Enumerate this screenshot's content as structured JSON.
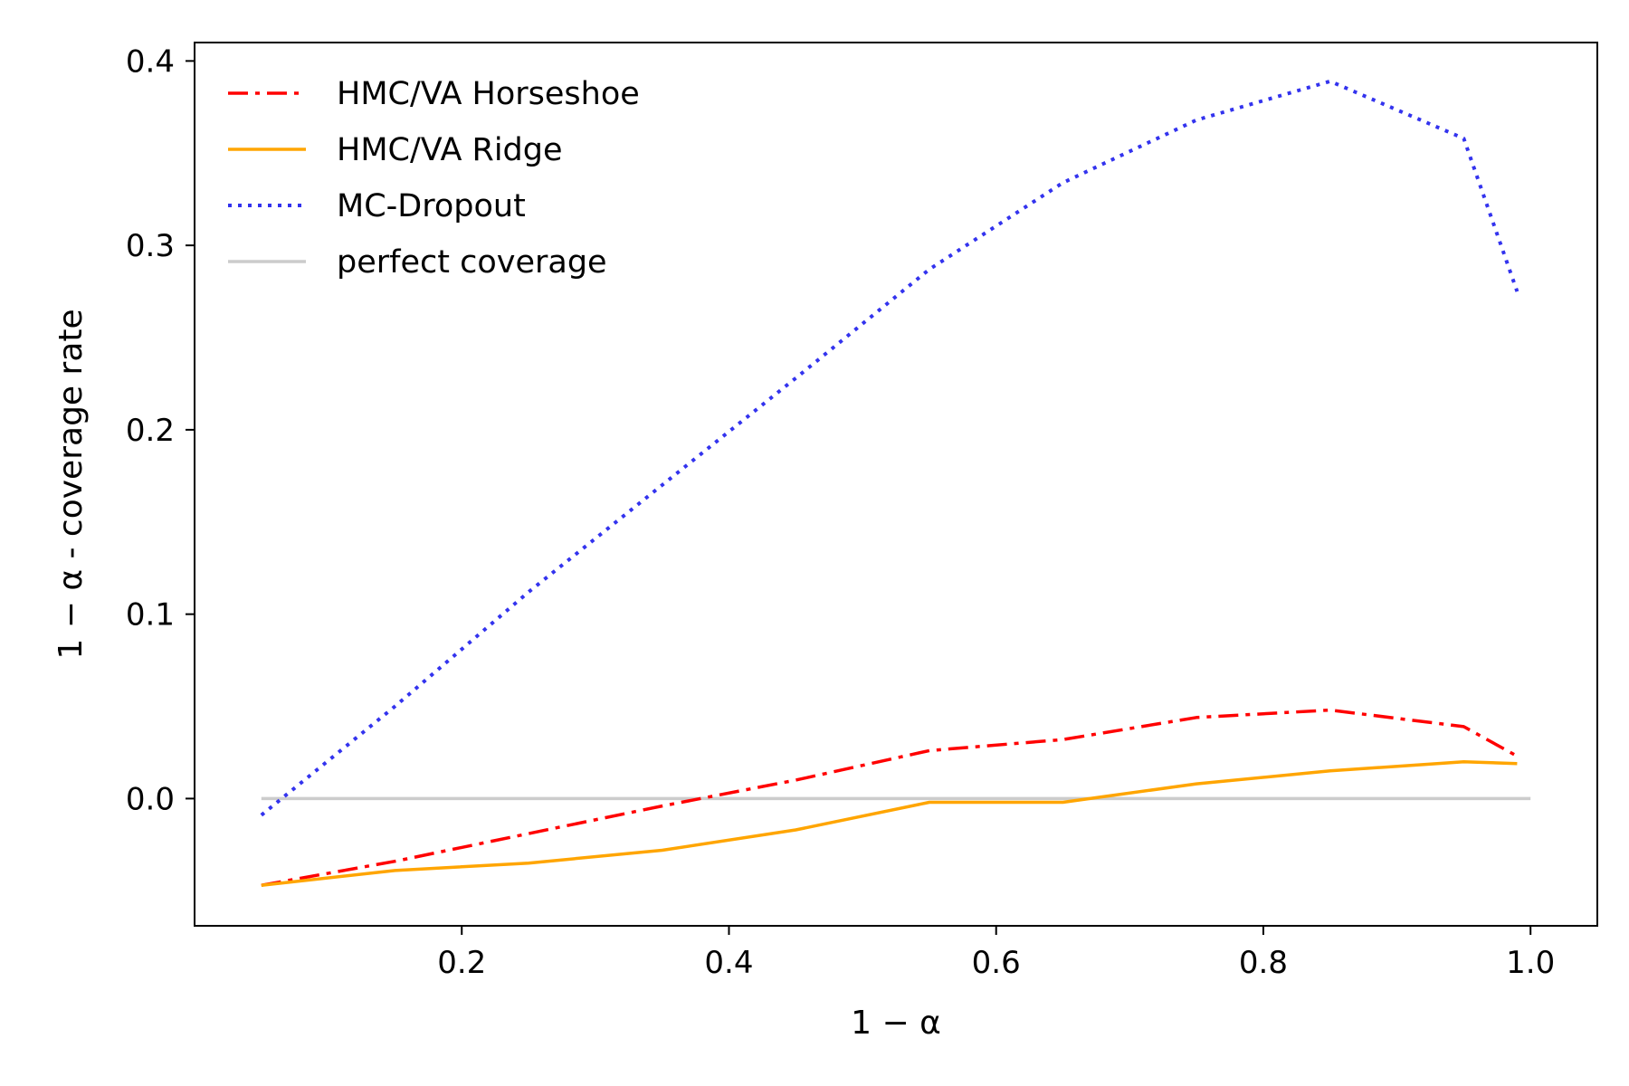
{
  "chart_data": {
    "type": "line",
    "xlabel": "1 − α",
    "ylabel": "1 − α - coverage rate",
    "xlim": [
      0.0,
      1.05
    ],
    "ylim": [
      -0.069,
      0.41
    ],
    "x_ticks": [
      0.2,
      0.4,
      0.6,
      0.8,
      1.0
    ],
    "x_tick_labels": [
      "0.2",
      "0.4",
      "0.6",
      "0.8",
      "1.0"
    ],
    "y_ticks": [
      0.0,
      0.1,
      0.2,
      0.3,
      0.4
    ],
    "y_tick_labels": [
      "0.0",
      "0.1",
      "0.2",
      "0.3",
      "0.4"
    ],
    "legend_position": "top-left",
    "grid": false,
    "series": [
      {
        "name": "HMC/VA Horseshoe",
        "color": "#ff0000",
        "style": "dashdot",
        "x": [
          0.05,
          0.15,
          0.25,
          0.35,
          0.45,
          0.55,
          0.65,
          0.75,
          0.85,
          0.95,
          0.99
        ],
        "y": [
          -0.047,
          -0.034,
          -0.019,
          -0.004,
          0.01,
          0.026,
          0.032,
          0.044,
          0.048,
          0.039,
          0.023
        ]
      },
      {
        "name": "HMC/VA Ridge",
        "color": "#ffa500",
        "style": "solid",
        "x": [
          0.05,
          0.15,
          0.25,
          0.35,
          0.45,
          0.55,
          0.65,
          0.75,
          0.85,
          0.95,
          0.99
        ],
        "y": [
          -0.047,
          -0.039,
          -0.035,
          -0.028,
          -0.017,
          -0.002,
          -0.002,
          0.008,
          0.015,
          0.02,
          0.019
        ]
      },
      {
        "name": "MC-Dropout",
        "color": "#3333ee",
        "style": "dotted",
        "x": [
          0.05,
          0.15,
          0.25,
          0.35,
          0.45,
          0.55,
          0.65,
          0.75,
          0.85,
          0.95,
          0.99
        ],
        "y": [
          -0.009,
          0.05,
          0.112,
          0.17,
          0.228,
          0.287,
          0.334,
          0.368,
          0.389,
          0.358,
          0.275
        ]
      },
      {
        "name": "perfect coverage",
        "color": "#cccccc",
        "style": "solid",
        "x": [
          0.05,
          1.0
        ],
        "y": [
          0.0,
          0.0
        ]
      }
    ]
  }
}
